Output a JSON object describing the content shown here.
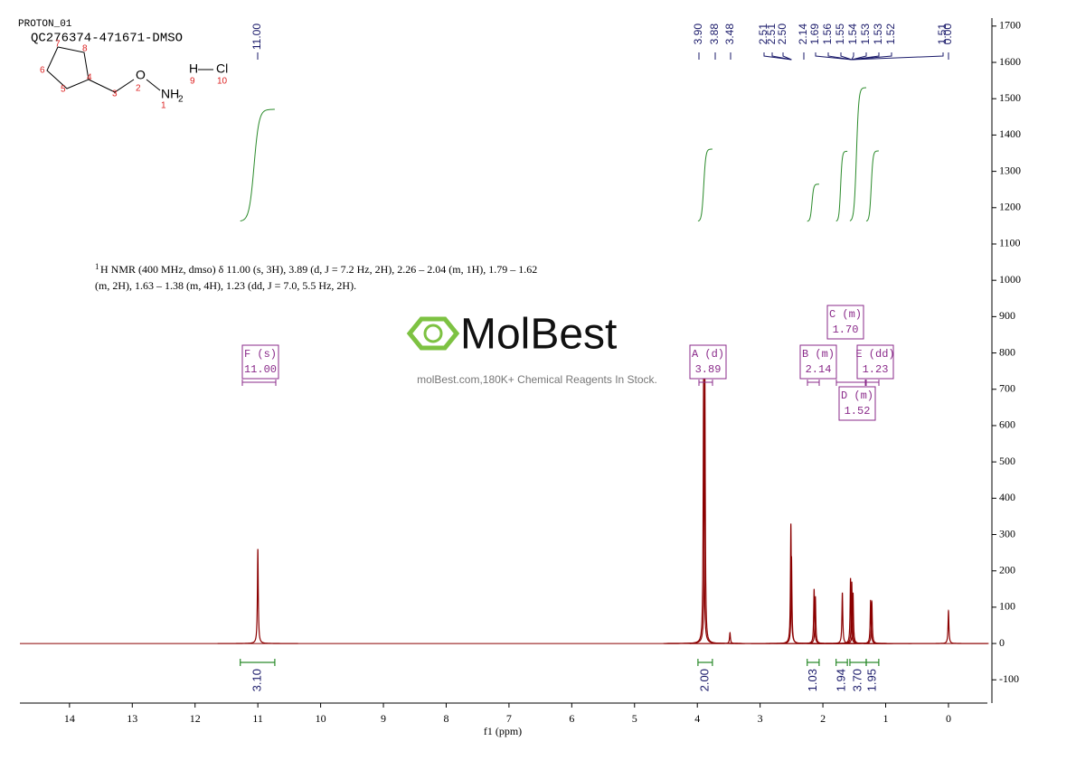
{
  "header": {
    "experiment": "PROTON_01",
    "sample": "QC276374-471671-DMSO"
  },
  "structure": {
    "atoms": [
      "O",
      "NH",
      "H",
      "Cl"
    ],
    "subscript": "2",
    "numbers": [
      "1",
      "2",
      "3",
      "4",
      "5",
      "6",
      "7",
      "8",
      "9",
      "10"
    ]
  },
  "description": {
    "superscript": "1",
    "lines": [
      "H NMR (400 MHz, dmso) δ 11.00 (s, 3H), 3.89 (d, J = 7.2 Hz, 2H), 2.26 – 2.04 (m, 1H), 1.79 – 1.62",
      "(m, 2H), 1.63 – 1.38 (m, 4H), 1.23 (dd, J = 7.0, 5.5 Hz, 2H)."
    ]
  },
  "watermark": {
    "brand": "MolBest",
    "slogan": "molBest.com,180K+ Chemical Reagents In Stock."
  },
  "chart_data": {
    "type": "nmr",
    "xlabel": "f1  (ppm)",
    "xlim": [
      14.79,
      -0.62
    ],
    "xticks": [
      14,
      13,
      12,
      11,
      10,
      9,
      8,
      7,
      6,
      5,
      4,
      3,
      2,
      1,
      0
    ],
    "ylim": [
      -164,
      1722
    ],
    "yticks": [
      -100,
      0,
      100,
      200,
      300,
      400,
      500,
      600,
      700,
      800,
      900,
      1000,
      1100,
      1200,
      1300,
      1400,
      1500,
      1600,
      1700
    ],
    "color": "#8b0000",
    "peaks": {
      "x": [
        11.0,
        3.9,
        3.88,
        3.48,
        2.51,
        2.5,
        2.14,
        2.12,
        1.69,
        1.56,
        1.54,
        1.52,
        1.24,
        1.22,
        0.0
      ],
      "values": [
        260,
        740,
        735,
        30,
        330,
        240,
        150,
        130,
        140,
        180,
        170,
        140,
        120,
        115,
        90
      ]
    },
    "peak_labels": [
      "11.00",
      "3.90",
      "3.88",
      "3.48",
      "2.51",
      "2.51",
      "2.50",
      "2.14",
      "1.69",
      "1.56",
      "1.55",
      "1.54",
      "1.53",
      "1.53",
      "1.52",
      "1.51",
      "0.00"
    ],
    "integrals": {
      "ranges": [
        [
          11.28,
          10.73
        ],
        [
          3.99,
          3.76
        ],
        [
          2.25,
          2.06
        ],
        [
          1.79,
          1.61
        ],
        [
          1.57,
          1.31
        ],
        [
          1.31,
          1.11
        ]
      ],
      "values": [
        3.1,
        2.0,
        1.03,
        1.94,
        3.7,
        1.95
      ],
      "value_labels": [
        "3.10",
        "2.00",
        "1.03",
        "1.94",
        "3.70",
        "1.95"
      ],
      "color": "#2a8a2a"
    },
    "multiplets": [
      {
        "label": "F (s)",
        "shift": "11.00"
      },
      {
        "label": "A (d)",
        "shift": "3.89"
      },
      {
        "label": "B (m)",
        "shift": "2.14"
      },
      {
        "label": "C (m)",
        "shift": "1.70"
      },
      {
        "label": "D (m)",
        "shift": "1.52"
      },
      {
        "label": "E (dd)",
        "shift": "1.23"
      }
    ]
  }
}
